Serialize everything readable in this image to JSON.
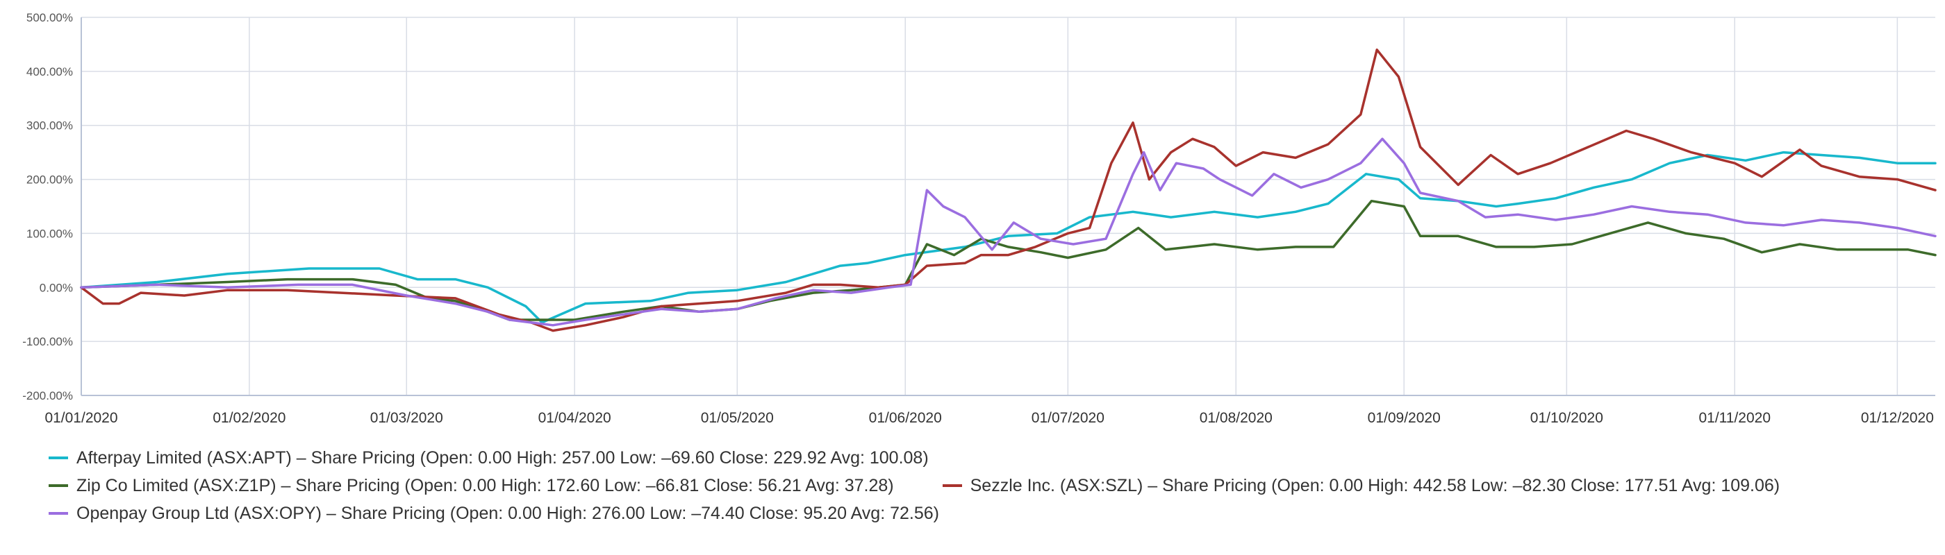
{
  "chart_data": {
    "type": "line",
    "ylim": [
      -200,
      500
    ],
    "y_ticks": [
      "500.00%",
      "400.00%",
      "300.00%",
      "200.00%",
      "100.00%",
      "0.00%",
      "-100.00%",
      "-200.00%"
    ],
    "y_tick_values": [
      500,
      400,
      300,
      200,
      100,
      0,
      -100,
      -200
    ],
    "x_tick_labels": [
      "01/01/2020",
      "01/02/2020",
      "01/03/2020",
      "01/04/2020",
      "01/05/2020",
      "01/06/2020",
      "01/07/2020",
      "01/08/2020",
      "01/09/2020",
      "01/10/2020",
      "01/11/2020",
      "01/12/2020"
    ],
    "x_tick_dates": [
      "2020-01-01",
      "2020-02-01",
      "2020-03-01",
      "2020-04-01",
      "2020-05-01",
      "2020-06-01",
      "2020-07-01",
      "2020-08-01",
      "2020-09-01",
      "2020-10-01",
      "2020-11-01",
      "2020-12-01"
    ],
    "x_range": [
      "2020-01-01",
      "2020-12-08"
    ],
    "grid": true,
    "legend_position": "bottom",
    "series": [
      {
        "name": "Afterpay Limited (ASX:APT) – Share Pricing (Open: 0.00 High: 257.00 Low: –69.60 Close: 229.92 Avg: 100.08)",
        "color": "#18b8cc",
        "points": [
          [
            "2020-01-01",
            0
          ],
          [
            "2020-01-15",
            10
          ],
          [
            "2020-01-28",
            25
          ],
          [
            "2020-02-12",
            35
          ],
          [
            "2020-02-25",
            35
          ],
          [
            "2020-03-03",
            15
          ],
          [
            "2020-03-10",
            15
          ],
          [
            "2020-03-16",
            0
          ],
          [
            "2020-03-23",
            -35
          ],
          [
            "2020-03-26",
            -65
          ],
          [
            "2020-04-03",
            -30
          ],
          [
            "2020-04-15",
            -25
          ],
          [
            "2020-04-22",
            -10
          ],
          [
            "2020-05-01",
            -5
          ],
          [
            "2020-05-10",
            10
          ],
          [
            "2020-05-20",
            40
          ],
          [
            "2020-05-25",
            45
          ],
          [
            "2020-06-01",
            60
          ],
          [
            "2020-06-12",
            75
          ],
          [
            "2020-06-20",
            95
          ],
          [
            "2020-06-29",
            100
          ],
          [
            "2020-07-05",
            130
          ],
          [
            "2020-07-13",
            140
          ],
          [
            "2020-07-20",
            130
          ],
          [
            "2020-07-28",
            140
          ],
          [
            "2020-08-05",
            130
          ],
          [
            "2020-08-12",
            140
          ],
          [
            "2020-08-18",
            155
          ],
          [
            "2020-08-25",
            210
          ],
          [
            "2020-08-31",
            200
          ],
          [
            "2020-09-04",
            165
          ],
          [
            "2020-09-11",
            160
          ],
          [
            "2020-09-18",
            150
          ],
          [
            "2020-09-22",
            155
          ],
          [
            "2020-09-29",
            165
          ],
          [
            "2020-10-06",
            185
          ],
          [
            "2020-10-13",
            200
          ],
          [
            "2020-10-20",
            230
          ],
          [
            "2020-10-27",
            245
          ],
          [
            "2020-11-03",
            235
          ],
          [
            "2020-11-10",
            250
          ],
          [
            "2020-11-17",
            245
          ],
          [
            "2020-11-24",
            240
          ],
          [
            "2020-12-01",
            230
          ],
          [
            "2020-12-08",
            230
          ]
        ]
      },
      {
        "name": "Zip Co Limited (ASX:Z1P) – Share Pricing (Open: 0.00 High: 172.60 Low: –66.81 Close: 56.21 Avg: 37.28)",
        "color": "#3d6b2a",
        "points": [
          [
            "2020-01-01",
            0
          ],
          [
            "2020-01-15",
            5
          ],
          [
            "2020-01-28",
            10
          ],
          [
            "2020-02-08",
            15
          ],
          [
            "2020-02-20",
            15
          ],
          [
            "2020-02-28",
            5
          ],
          [
            "2020-03-05",
            -20
          ],
          [
            "2020-03-10",
            -25
          ],
          [
            "2020-03-16",
            -45
          ],
          [
            "2020-03-20",
            -60
          ],
          [
            "2020-03-25",
            -60
          ],
          [
            "2020-04-01",
            -60
          ],
          [
            "2020-04-10",
            -45
          ],
          [
            "2020-04-17",
            -35
          ],
          [
            "2020-04-24",
            -45
          ],
          [
            "2020-05-01",
            -40
          ],
          [
            "2020-05-07",
            -25
          ],
          [
            "2020-05-15",
            -10
          ],
          [
            "2020-05-22",
            -5
          ],
          [
            "2020-06-01",
            5
          ],
          [
            "2020-06-05",
            80
          ],
          [
            "2020-06-10",
            60
          ],
          [
            "2020-06-15",
            90
          ],
          [
            "2020-06-20",
            75
          ],
          [
            "2020-06-26",
            65
          ],
          [
            "2020-07-01",
            55
          ],
          [
            "2020-07-08",
            70
          ],
          [
            "2020-07-14",
            110
          ],
          [
            "2020-07-19",
            70
          ],
          [
            "2020-07-28",
            80
          ],
          [
            "2020-08-05",
            70
          ],
          [
            "2020-08-12",
            75
          ],
          [
            "2020-08-19",
            75
          ],
          [
            "2020-08-26",
            160
          ],
          [
            "2020-09-01",
            150
          ],
          [
            "2020-09-04",
            95
          ],
          [
            "2020-09-11",
            95
          ],
          [
            "2020-09-18",
            75
          ],
          [
            "2020-09-25",
            75
          ],
          [
            "2020-10-02",
            80
          ],
          [
            "2020-10-09",
            100
          ],
          [
            "2020-10-16",
            120
          ],
          [
            "2020-10-23",
            100
          ],
          [
            "2020-10-30",
            90
          ],
          [
            "2020-11-06",
            65
          ],
          [
            "2020-11-13",
            80
          ],
          [
            "2020-11-20",
            70
          ],
          [
            "2020-11-27",
            70
          ],
          [
            "2020-12-03",
            70
          ],
          [
            "2020-12-08",
            60
          ]
        ]
      },
      {
        "name": "Sezzle Inc. (ASX:SZL) – Share Pricing (Open: 0.00 High: 442.58 Low: –82.30 Close: 177.51 Avg: 109.06)",
        "color": "#a8322d",
        "points": [
          [
            "2020-01-01",
            0
          ],
          [
            "2020-01-05",
            -30
          ],
          [
            "2020-01-08",
            -30
          ],
          [
            "2020-01-12",
            -10
          ],
          [
            "2020-01-20",
            -15
          ],
          [
            "2020-01-28",
            -5
          ],
          [
            "2020-02-08",
            -5
          ],
          [
            "2020-02-18",
            -10
          ],
          [
            "2020-02-28",
            -15
          ],
          [
            "2020-03-10",
            -20
          ],
          [
            "2020-03-18",
            -50
          ],
          [
            "2020-03-24",
            -65
          ],
          [
            "2020-03-28",
            -80
          ],
          [
            "2020-04-03",
            -70
          ],
          [
            "2020-04-10",
            -55
          ],
          [
            "2020-04-17",
            -35
          ],
          [
            "2020-04-24",
            -30
          ],
          [
            "2020-05-01",
            -25
          ],
          [
            "2020-05-10",
            -10
          ],
          [
            "2020-05-15",
            5
          ],
          [
            "2020-05-20",
            5
          ],
          [
            "2020-05-27",
            0
          ],
          [
            "2020-06-01",
            5
          ],
          [
            "2020-06-05",
            40
          ],
          [
            "2020-06-12",
            45
          ],
          [
            "2020-06-15",
            60
          ],
          [
            "2020-06-20",
            60
          ],
          [
            "2020-06-25",
            75
          ],
          [
            "2020-07-01",
            100
          ],
          [
            "2020-07-05",
            110
          ],
          [
            "2020-07-09",
            230
          ],
          [
            "2020-07-13",
            305
          ],
          [
            "2020-07-16",
            200
          ],
          [
            "2020-07-20",
            250
          ],
          [
            "2020-07-24",
            275
          ],
          [
            "2020-07-28",
            260
          ],
          [
            "2020-08-01",
            225
          ],
          [
            "2020-08-06",
            250
          ],
          [
            "2020-08-12",
            240
          ],
          [
            "2020-08-18",
            265
          ],
          [
            "2020-08-24",
            320
          ],
          [
            "2020-08-27",
            440
          ],
          [
            "2020-08-31",
            390
          ],
          [
            "2020-09-04",
            260
          ],
          [
            "2020-09-11",
            190
          ],
          [
            "2020-09-17",
            245
          ],
          [
            "2020-09-22",
            210
          ],
          [
            "2020-09-28",
            230
          ],
          [
            "2020-10-05",
            260
          ],
          [
            "2020-10-12",
            290
          ],
          [
            "2020-10-17",
            275
          ],
          [
            "2020-10-24",
            250
          ],
          [
            "2020-11-01",
            230
          ],
          [
            "2020-11-06",
            205
          ],
          [
            "2020-11-13",
            255
          ],
          [
            "2020-11-17",
            225
          ],
          [
            "2020-11-24",
            205
          ],
          [
            "2020-12-01",
            200
          ],
          [
            "2020-12-08",
            180
          ]
        ]
      },
      {
        "name": "Openpay Group Ltd (ASX:OPY) – Share Pricing (Open: 0.00 High: 276.00 Low: –74.40 Close: 95.20 Avg: 72.56)",
        "color": "#9b6ee0",
        "points": [
          [
            "2020-01-01",
            0
          ],
          [
            "2020-01-15",
            5
          ],
          [
            "2020-01-28",
            0
          ],
          [
            "2020-02-10",
            5
          ],
          [
            "2020-02-20",
            5
          ],
          [
            "2020-03-01",
            -15
          ],
          [
            "2020-03-10",
            -30
          ],
          [
            "2020-03-16",
            -45
          ],
          [
            "2020-03-20",
            -60
          ],
          [
            "2020-03-28",
            -70
          ],
          [
            "2020-04-03",
            -60
          ],
          [
            "2020-04-10",
            -50
          ],
          [
            "2020-04-17",
            -40
          ],
          [
            "2020-04-24",
            -45
          ],
          [
            "2020-05-01",
            -40
          ],
          [
            "2020-05-08",
            -20
          ],
          [
            "2020-05-15",
            -5
          ],
          [
            "2020-05-22",
            -10
          ],
          [
            "2020-05-29",
            0
          ],
          [
            "2020-06-02",
            5
          ],
          [
            "2020-06-05",
            180
          ],
          [
            "2020-06-08",
            150
          ],
          [
            "2020-06-12",
            130
          ],
          [
            "2020-06-17",
            70
          ],
          [
            "2020-06-21",
            120
          ],
          [
            "2020-06-26",
            90
          ],
          [
            "2020-07-02",
            80
          ],
          [
            "2020-07-08",
            90
          ],
          [
            "2020-07-13",
            210
          ],
          [
            "2020-07-15",
            250
          ],
          [
            "2020-07-18",
            180
          ],
          [
            "2020-07-21",
            230
          ],
          [
            "2020-07-26",
            220
          ],
          [
            "2020-07-29",
            200
          ],
          [
            "2020-08-04",
            170
          ],
          [
            "2020-08-08",
            210
          ],
          [
            "2020-08-13",
            185
          ],
          [
            "2020-08-18",
            200
          ],
          [
            "2020-08-24",
            230
          ],
          [
            "2020-08-28",
            275
          ],
          [
            "2020-09-01",
            230
          ],
          [
            "2020-09-04",
            175
          ],
          [
            "2020-09-11",
            160
          ],
          [
            "2020-09-16",
            130
          ],
          [
            "2020-09-22",
            135
          ],
          [
            "2020-09-29",
            125
          ],
          [
            "2020-10-06",
            135
          ],
          [
            "2020-10-13",
            150
          ],
          [
            "2020-10-20",
            140
          ],
          [
            "2020-10-27",
            135
          ],
          [
            "2020-11-03",
            120
          ],
          [
            "2020-11-10",
            115
          ],
          [
            "2020-11-17",
            125
          ],
          [
            "2020-11-24",
            120
          ],
          [
            "2020-12-01",
            110
          ],
          [
            "2020-12-08",
            95
          ]
        ]
      }
    ]
  }
}
